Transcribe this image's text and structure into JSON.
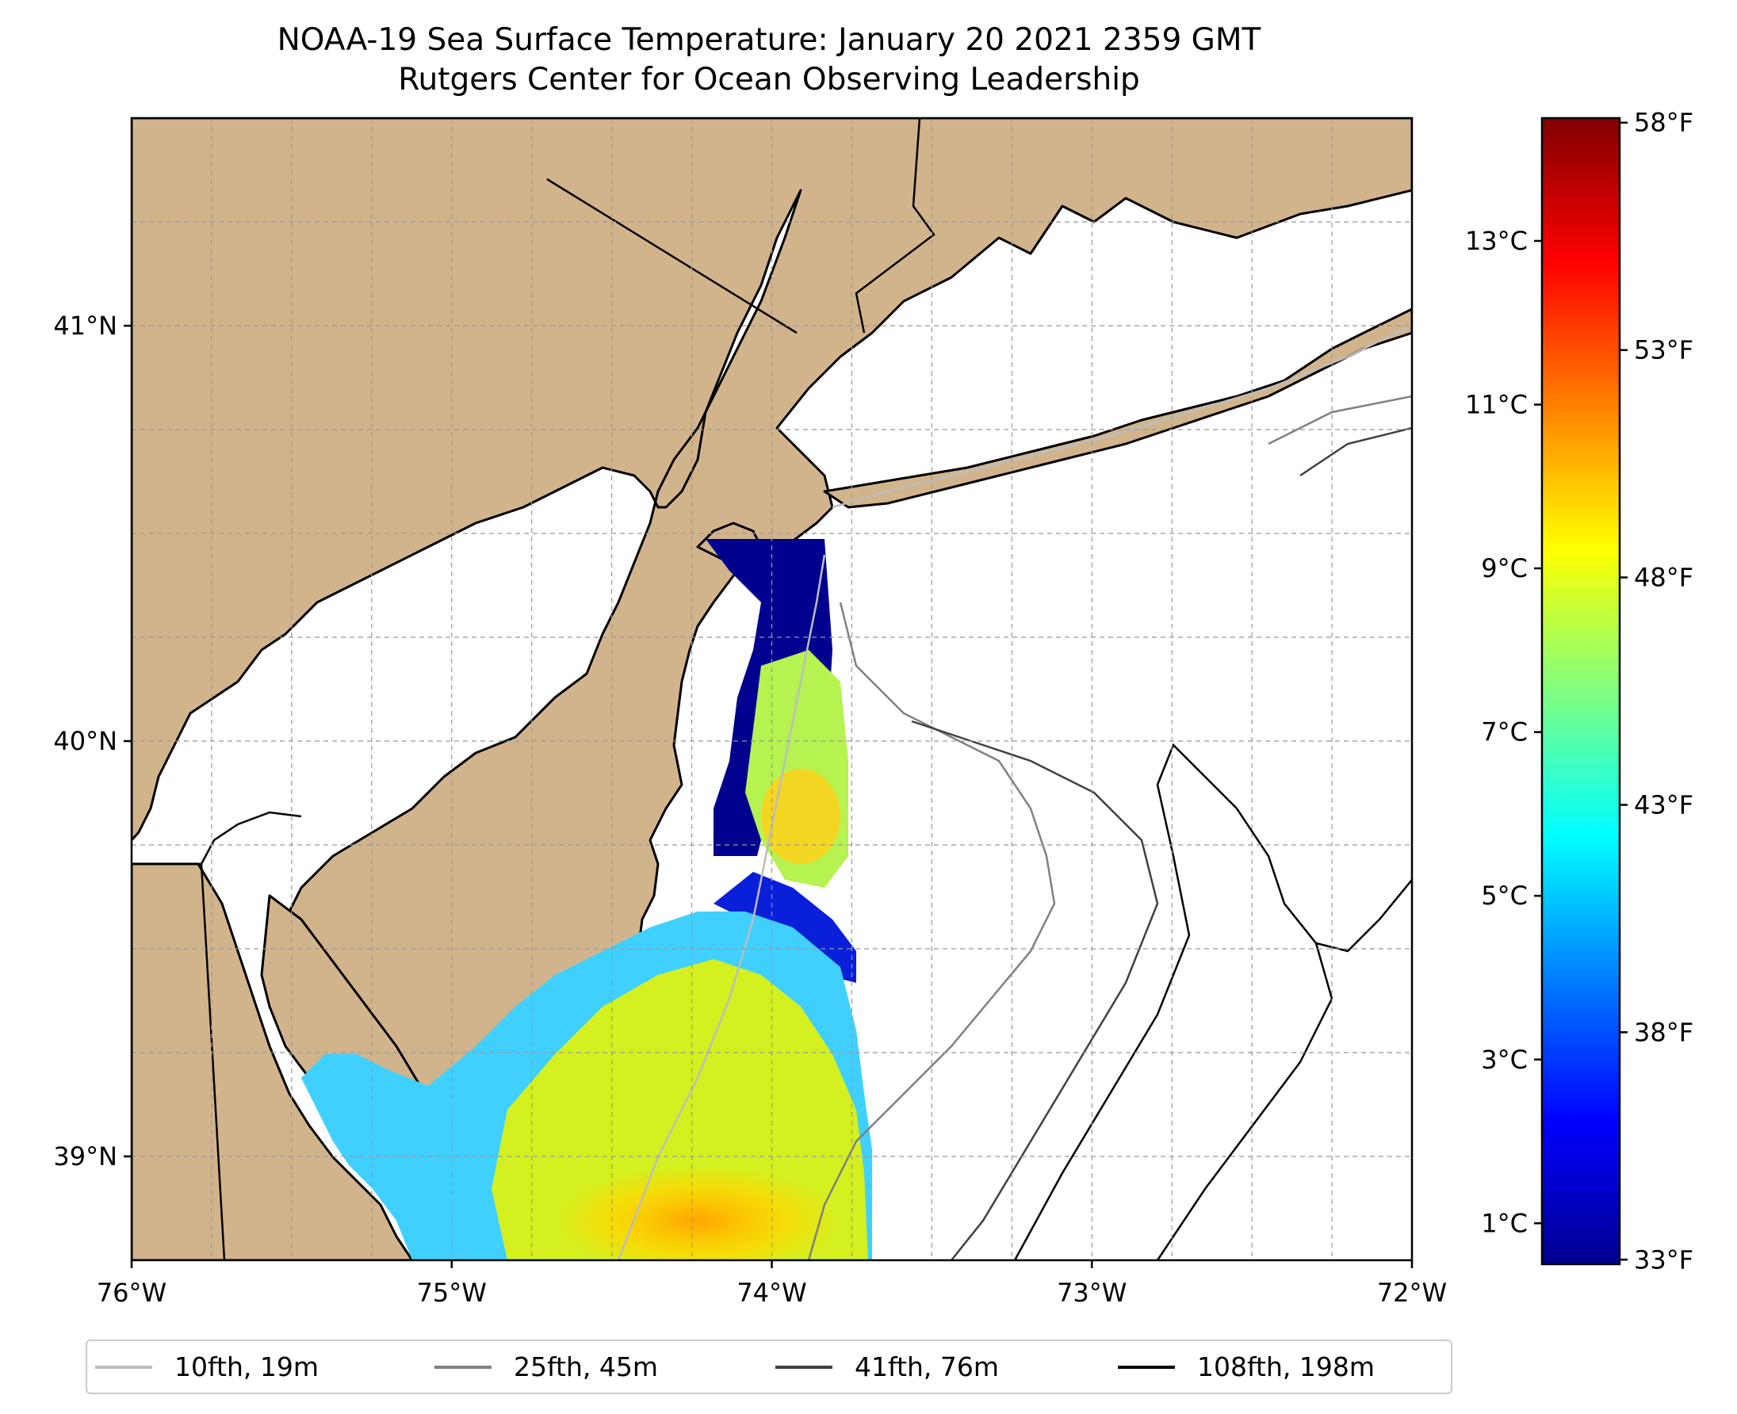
{
  "title": {
    "line1": "NOAA-19 Sea Surface Temperature: January 20 2021 2359 GMT",
    "line2": "Rutgers Center for Ocean Observing Leadership"
  },
  "map": {
    "extent": {
      "lon_min": -76.0,
      "lon_max": -72.0,
      "lat_min": 38.75,
      "lat_max": 41.5
    },
    "x_ticks": [
      {
        "lon": -76,
        "label": "76°W"
      },
      {
        "lon": -75,
        "label": "75°W"
      },
      {
        "lon": -74,
        "label": "74°W"
      },
      {
        "lon": -73,
        "label": "73°W"
      },
      {
        "lon": -72,
        "label": "72°W"
      }
    ],
    "y_ticks": [
      {
        "lat": 39,
        "label": "39°N"
      },
      {
        "lat": 40,
        "label": "40°N"
      },
      {
        "lat": 41,
        "label": "41°N"
      }
    ],
    "gridlines": true,
    "colors": {
      "land": "#d2b48c",
      "ocean": "#ffffff",
      "coastline": "#000000",
      "gridline": "#999999"
    }
  },
  "colorbar": {
    "colormap": "jet",
    "range_c": [
      0.5,
      14.5
    ],
    "celsius_ticks": [
      {
        "value": 1,
        "label": "1°C"
      },
      {
        "value": 3,
        "label": "3°C"
      },
      {
        "value": 5,
        "label": "5°C"
      },
      {
        "value": 7,
        "label": "7°C"
      },
      {
        "value": 9,
        "label": "9°C"
      },
      {
        "value": 11,
        "label": "11°C"
      },
      {
        "value": 13,
        "label": "13°C"
      }
    ],
    "fahrenheit_ticks": [
      {
        "value": 33,
        "label": "33°F"
      },
      {
        "value": 38,
        "label": "38°F"
      },
      {
        "value": 43,
        "label": "43°F"
      },
      {
        "value": 48,
        "label": "48°F"
      },
      {
        "value": 53,
        "label": "53°F"
      },
      {
        "value": 58,
        "label": "58°F"
      }
    ]
  },
  "legend": {
    "placement": "bottom",
    "items": [
      {
        "label": "10fth, 19m",
        "color": "#bdbdbd"
      },
      {
        "label": "25fth, 45m",
        "color": "#808080"
      },
      {
        "label": "41fth, 76m",
        "color": "#404040"
      },
      {
        "label": "108fth, 198m",
        "color": "#000000"
      }
    ]
  }
}
